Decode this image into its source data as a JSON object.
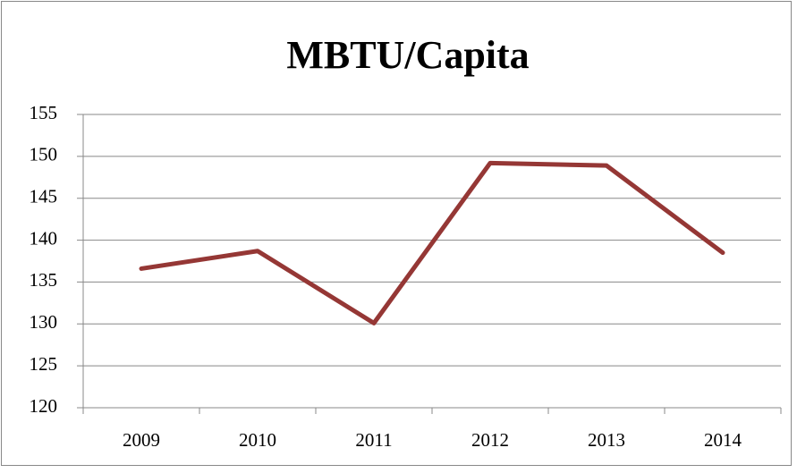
{
  "chart_data": {
    "type": "line",
    "title": "MBTU/Capita",
    "categories": [
      "2009",
      "2010",
      "2011",
      "2012",
      "2013",
      "2014"
    ],
    "values": [
      136.6,
      138.7,
      130.1,
      149.2,
      148.9,
      138.5
    ],
    "color": "#953735",
    "ylim": [
      120,
      155
    ],
    "yticks": [
      120,
      125,
      130,
      135,
      140,
      145,
      150,
      155
    ],
    "grid": true
  }
}
